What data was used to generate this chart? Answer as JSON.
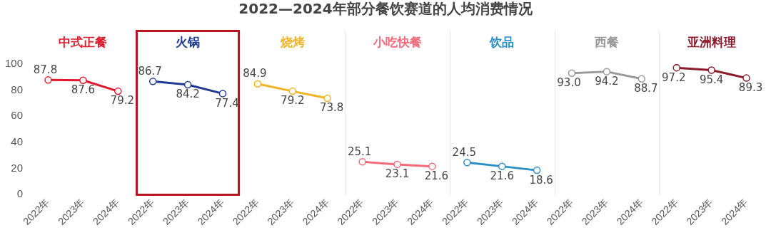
{
  "chart_data": {
    "type": "line",
    "title": "2022—2024年部分餐饮赛道的人均消费情况",
    "categories": [
      "2022年",
      "2023年",
      "2024年",
      "2022年",
      "2023年",
      "2024年",
      "2022年",
      "2023年",
      "2024年",
      "2022年",
      "2023年",
      "2024年",
      "2022年",
      "2023年",
      "2024年",
      "2022年",
      "2023年",
      "2024年",
      "2022年",
      "2023年",
      "2024年"
    ],
    "series": [
      {
        "name": "中式正餐",
        "color": "#e0192b",
        "values": [
          87.8,
          87.6,
          79.2,
          null,
          null,
          null,
          null,
          null,
          null,
          null,
          null,
          null,
          null,
          null,
          null,
          null,
          null,
          null,
          null,
          null,
          null
        ],
        "value_labels": [
          "87.8",
          "87.6",
          "79.2",
          null,
          null,
          null,
          null,
          null,
          null,
          null,
          null,
          null,
          null,
          null,
          null,
          null,
          null,
          null,
          null,
          null,
          null
        ]
      },
      {
        "name": "火锅",
        "color": "#1f3a93",
        "values": [
          null,
          null,
          null,
          86.7,
          84.2,
          77.4,
          null,
          null,
          null,
          null,
          null,
          null,
          null,
          null,
          null,
          null,
          null,
          null,
          null,
          null,
          null
        ],
        "value_labels": [
          null,
          null,
          null,
          "86.7",
          "84.2",
          "77.4",
          null,
          null,
          null,
          null,
          null,
          null,
          null,
          null,
          null,
          null,
          null,
          null,
          null,
          null,
          null
        ]
      },
      {
        "name": "烧烤",
        "color": "#f0b323",
        "values": [
          null,
          null,
          null,
          null,
          null,
          null,
          84.9,
          79.2,
          73.8,
          null,
          null,
          null,
          null,
          null,
          null,
          null,
          null,
          null,
          null,
          null,
          null
        ],
        "value_labels": [
          null,
          null,
          null,
          null,
          null,
          null,
          "84.9",
          "79.2",
          "73.8",
          null,
          null,
          null,
          null,
          null,
          null,
          null,
          null,
          null,
          null,
          null,
          null
        ]
      },
      {
        "name": "小吃快餐",
        "color": "#f26b7a",
        "values": [
          null,
          null,
          null,
          null,
          null,
          null,
          null,
          null,
          null,
          25.1,
          23.1,
          21.6,
          null,
          null,
          null,
          null,
          null,
          null,
          null,
          null,
          null
        ],
        "value_labels": [
          null,
          null,
          null,
          null,
          null,
          null,
          null,
          null,
          null,
          "25.1",
          "23.1",
          "21.6",
          null,
          null,
          null,
          null,
          null,
          null,
          null,
          null,
          null
        ]
      },
      {
        "name": "饮品",
        "color": "#2a8fc4",
        "values": [
          null,
          null,
          null,
          null,
          null,
          null,
          null,
          null,
          null,
          null,
          null,
          null,
          24.5,
          21.6,
          18.6,
          null,
          null,
          null,
          null,
          null,
          null
        ],
        "value_labels": [
          null,
          null,
          null,
          null,
          null,
          null,
          null,
          null,
          null,
          null,
          null,
          null,
          "24.5",
          "21.6",
          "18.6",
          null,
          null,
          null,
          null,
          null,
          null
        ]
      },
      {
        "name": "西餐",
        "color": "#999999",
        "values": [
          null,
          null,
          null,
          null,
          null,
          null,
          null,
          null,
          null,
          null,
          null,
          null,
          null,
          null,
          null,
          93.0,
          94.2,
          88.7,
          null,
          null,
          null
        ],
        "value_labels": [
          null,
          null,
          null,
          null,
          null,
          null,
          null,
          null,
          null,
          null,
          null,
          null,
          null,
          null,
          null,
          "93.0",
          "94.2",
          "88.7",
          null,
          null,
          null
        ]
      },
      {
        "name": "亚洲料理",
        "color": "#8b1a2b",
        "values": [
          null,
          null,
          null,
          null,
          null,
          null,
          null,
          null,
          null,
          null,
          null,
          null,
          null,
          null,
          null,
          null,
          null,
          null,
          97.2,
          95.4,
          89.3
        ],
        "value_labels": [
          null,
          null,
          null,
          null,
          null,
          null,
          null,
          null,
          null,
          null,
          null,
          null,
          null,
          null,
          null,
          null,
          null,
          null,
          "97.2",
          "95.4",
          "89.3"
        ]
      }
    ],
    "ylim": [
      0,
      100
    ],
    "yticks": [
      0,
      20,
      40,
      60,
      80,
      100
    ],
    "grid": false,
    "marker": "circle",
    "line_style": "solid"
  }
}
